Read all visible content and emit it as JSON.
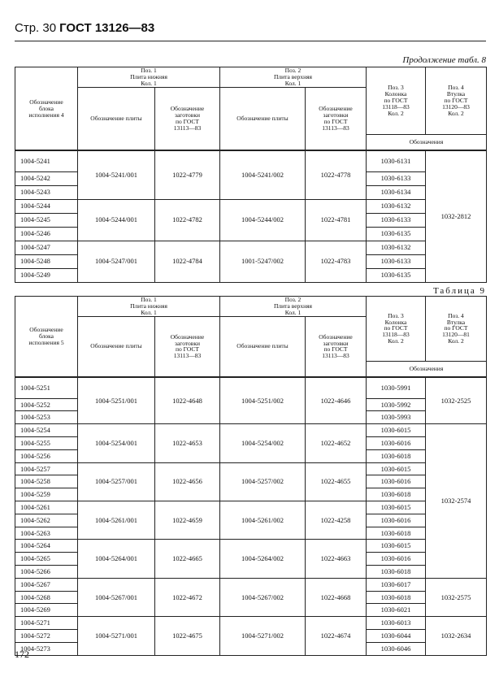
{
  "header": {
    "page_label": "Стр. 30",
    "standard": "ГОСТ 13126—83"
  },
  "tables": [
    {
      "caption": "Продолжение табл. 8",
      "headers": {
        "block": [
          "Обозначение",
          "блока",
          "исполнения 4"
        ],
        "pos1": [
          "Поз. 1",
          "Плита нижняя",
          "Кол. 1"
        ],
        "pos2": [
          "Поз. 2",
          "Плита верхняя",
          "Кол. 1"
        ],
        "plate": "Обозначение плиты",
        "blank": [
          "Обозначение",
          "заготовки",
          "по ГОСТ",
          "13113—83"
        ],
        "pos3": [
          "Поз. 3",
          "Колонка",
          "по ГОСТ",
          "13118—83",
          "Кол. 2"
        ],
        "pos4": [
          "Поз. 4",
          "Втулка",
          "по ГОСТ",
          "13120—83",
          "Кол. 2"
        ],
        "designations": "Обозначения"
      },
      "groups": [
        {
          "blocks": [
            "1004-5241",
            "1004-5242",
            "1004-5243"
          ],
          "plate_lower": "1004-5241/001",
          "blank_lower": "1022-4779",
          "plate_upper": "1004-5241/002",
          "blank_upper": "1022-4778",
          "columns": [
            "1030-6131",
            "1030-6133",
            "1030-6134"
          ],
          "bushing": "1032-2812"
        },
        {
          "blocks": [
            "1004-5244",
            "1004-5245",
            "1004-5246"
          ],
          "plate_lower": "1004-5244/001",
          "blank_lower": "1022-4782",
          "plate_upper": "1004-5244/002",
          "blank_upper": "1022-4781",
          "columns": [
            "1030-6132",
            "1030-6133",
            "1030-6135"
          ],
          "bushing": null
        },
        {
          "blocks": [
            "1004-5247",
            "1004-5248",
            "1004-5249"
          ],
          "plate_lower": "1004-5247/001",
          "blank_lower": "1022-4784",
          "plate_upper": "1001-5247/002",
          "blank_upper": "1022-4783",
          "columns": [
            "1030-6132",
            "1030-6133",
            "1030-6135"
          ],
          "bushing": null
        }
      ]
    },
    {
      "caption": "Таблица 9",
      "headers": {
        "block": [
          "Обозначение",
          "блока",
          "исполнения 5"
        ],
        "pos1": [
          "Поз. 1",
          "Плита нижняя",
          "Кол. 1"
        ],
        "pos2": [
          "Поз. 2",
          "Плита верхняя",
          "Кол. 1"
        ],
        "plate": "Обозначение плиты",
        "blank": [
          "Обозначение",
          "заготовки",
          "по ГОСТ",
          "13113—83"
        ],
        "pos3": [
          "Поз. 3",
          "Колонка",
          "по ГОСТ",
          "13118—83",
          "Кол. 2"
        ],
        "pos4": [
          "Поз. 4",
          "Втулка",
          "по ГОСТ",
          "13120—81",
          "Кол. 2"
        ],
        "designations": "Обозначения"
      },
      "groups": [
        {
          "blocks": [
            "1004-5251",
            "1004-5252",
            "1004-5253"
          ],
          "plate_lower": "1004-5251/001",
          "blank_lower": "1022-4648",
          "plate_upper": "1004-5251/002",
          "blank_upper": "1022-4646",
          "columns": [
            "1030-5991",
            "1030-5992",
            "1030-5993"
          ],
          "bushing": "1032-2525"
        },
        {
          "blocks": [
            "1004-5254",
            "1004-5255",
            "1004-5256"
          ],
          "plate_lower": "1004-5254/001",
          "blank_lower": "1022-4653",
          "plate_upper": "1004-5254/002",
          "blank_upper": "1022-4652",
          "columns": [
            "1030-6015",
            "1030-6016",
            "1030-6018"
          ],
          "bushing": "1032-2574"
        },
        {
          "blocks": [
            "1004-5257",
            "1004-5258",
            "1004-5259"
          ],
          "plate_lower": "1004-5257/001",
          "blank_lower": "1022-4656",
          "plate_upper": "1004-5257/002",
          "blank_upper": "1022-4655",
          "columns": [
            "1030-6015",
            "1030-6016",
            "1030-6018"
          ],
          "bushing": null
        },
        {
          "blocks": [
            "1004-5261",
            "1004-5262",
            "1004-5263"
          ],
          "plate_lower": "1004-5261/001",
          "blank_lower": "1022-4659",
          "plate_upper": "1004-5261/002",
          "blank_upper": "1022-4258",
          "columns": [
            "1030-6015",
            "1030-6016",
            "1030-6018"
          ],
          "bushing": null
        },
        {
          "blocks": [
            "1004-5264",
            "1004-5265",
            "1004-5266"
          ],
          "plate_lower": "1004-5264/001",
          "blank_lower": "1022-4665",
          "plate_upper": "1004-5264/002",
          "blank_upper": "1022-4663",
          "columns": [
            "1030-6015",
            "1030-6016",
            "1030-6018"
          ],
          "bushing": null
        },
        {
          "blocks": [
            "1004-5267",
            "1004-5268",
            "1004-5269"
          ],
          "plate_lower": "1004-5267/001",
          "blank_lower": "1022-4672",
          "plate_upper": "1004-5267/002",
          "blank_upper": "1022-4668",
          "columns": [
            "1030-6017",
            "1030-6018",
            "1030-6021"
          ],
          "bushing": "1032-2575"
        },
        {
          "blocks": [
            "1004-5271",
            "1004-5272",
            "1004-5273"
          ],
          "plate_lower": "1004-5271/001",
          "blank_lower": "1022-4675",
          "plate_upper": "1004-5271/002",
          "blank_upper": "1022-4674",
          "columns": [
            "1030-6013",
            "1030-6044",
            "1030-6046"
          ],
          "bushing": "1032-2634"
        }
      ]
    }
  ],
  "footer": {
    "page_number": "172"
  }
}
